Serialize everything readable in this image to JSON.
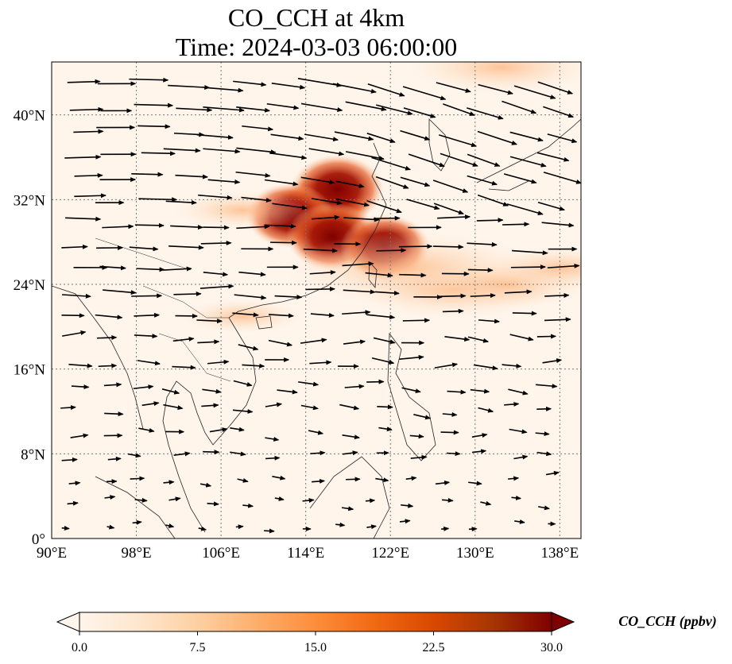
{
  "title": {
    "line1": "CO_CCH at 4km",
    "line2": "Time: 2024-03-03 06:00:00"
  },
  "map": {
    "lon_range": [
      90,
      140
    ],
    "lat_range": [
      0,
      45
    ],
    "lon_ticks": [
      {
        "value": 90,
        "label": "90°E"
      },
      {
        "value": 98,
        "label": "98°E"
      },
      {
        "value": 106,
        "label": "106°E"
      },
      {
        "value": 114,
        "label": "114°E"
      },
      {
        "value": 122,
        "label": "122°E"
      },
      {
        "value": 130,
        "label": "130°E"
      },
      {
        "value": 138,
        "label": "138°E"
      }
    ],
    "lat_ticks": [
      {
        "value": 0,
        "label": "0°"
      },
      {
        "value": 8,
        "label": "8°N"
      },
      {
        "value": 16,
        "label": "16°N"
      },
      {
        "value": 24,
        "label": "24°N"
      },
      {
        "value": 32,
        "label": "32°N"
      },
      {
        "value": 40,
        "label": "40°N"
      }
    ],
    "gridlines": true,
    "colors": {
      "background": "#fff5eb",
      "low": "#fdd9b0",
      "mid": "#f08a4b",
      "high": "#c0340f",
      "max": "#7f0000",
      "coast": "#222222",
      "grid": "#777777"
    }
  },
  "colorbar": {
    "label": "CO_CCH (ppbv)",
    "min": 0.0,
    "max": 30.0,
    "extend": "both",
    "ticks": [
      {
        "value": 0.0,
        "label": "0.0"
      },
      {
        "value": 7.5,
        "label": "7.5"
      },
      {
        "value": 15.0,
        "label": "15.0"
      },
      {
        "value": 22.5,
        "label": "22.5"
      },
      {
        "value": 30.0,
        "label": "30.0"
      }
    ],
    "stops": [
      "#fff5eb",
      "#fee6ce",
      "#fdd0a2",
      "#fdae6b",
      "#fd8d3c",
      "#f16913",
      "#d94801",
      "#a63603",
      "#7f0000"
    ]
  },
  "chart_data": {
    "type": "heatmap",
    "variable": "CO_CCH",
    "units": "ppbv",
    "plumes": [
      {
        "lon": 115.5,
        "lat": 31.0,
        "value": 30
      },
      {
        "lon": 117.0,
        "lat": 33.0,
        "value": 28
      },
      {
        "lon": 112.5,
        "lat": 30.5,
        "value": 25
      },
      {
        "lon": 116.5,
        "lat": 28.5,
        "value": 27
      },
      {
        "lon": 121.5,
        "lat": 27.5,
        "value": 26
      },
      {
        "lon": 124.0,
        "lat": 25.5,
        "value": 10
      },
      {
        "lon": 128.0,
        "lat": 23.5,
        "value": 7
      },
      {
        "lon": 133.0,
        "lat": 24.0,
        "value": 5
      },
      {
        "lon": 138.0,
        "lat": 25.5,
        "value": 4
      },
      {
        "lon": 132.5,
        "lat": 44.5,
        "value": 6
      },
      {
        "lon": 108.0,
        "lat": 31.0,
        "value": 3
      },
      {
        "lon": 108.0,
        "lat": 21.0,
        "value": 2
      }
    ],
    "wind_vectors": "arrows indicating predominantly westerly flow at 4 km"
  }
}
